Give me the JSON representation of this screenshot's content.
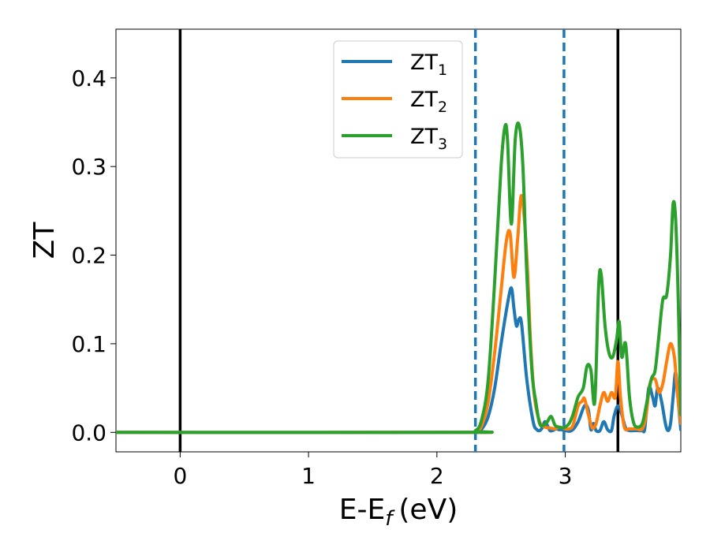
{
  "chart_data": {
    "type": "line",
    "xlabel": "E-E",
    "xlabel_sub": "f",
    "xlabel_unit": "(eV)",
    "ylabel": "ZT",
    "xlim": [
      -0.5,
      3.9
    ],
    "ylim": [
      -0.022,
      0.455
    ],
    "xticks": [
      0,
      1,
      2,
      3
    ],
    "xtick_labels": [
      "0",
      "1",
      "2",
      "3"
    ],
    "yticks": [
      0.0,
      0.1,
      0.2,
      0.3,
      0.4
    ],
    "ytick_labels": [
      "0.0",
      "0.1",
      "0.2",
      "0.3",
      "0.4"
    ],
    "grid": false,
    "legend_position": "top-center",
    "vlines": [
      {
        "x": 0.0,
        "style": "solid",
        "color": "#000000"
      },
      {
        "x": 3.41,
        "style": "solid",
        "color": "#000000"
      },
      {
        "x": 2.3,
        "style": "dashed",
        "color": "#1f77b4"
      },
      {
        "x": 2.99,
        "style": "dashed",
        "color": "#1f77b4"
      }
    ],
    "series": [
      {
        "name": "ZT",
        "subscript": "1",
        "color": "#1f77b4",
        "x": [
          -0.5,
          2.2,
          2.3,
          2.35,
          2.4,
          2.45,
          2.5,
          2.55,
          2.58,
          2.6,
          2.62,
          2.64,
          2.66,
          2.7,
          2.75,
          2.78,
          2.8,
          2.82,
          2.84,
          2.86,
          2.88,
          2.9,
          2.93,
          2.95,
          2.97,
          3.0,
          3.05,
          3.1,
          3.15,
          3.18,
          3.2,
          3.22,
          3.24,
          3.27,
          3.3,
          3.33,
          3.36,
          3.38,
          3.41,
          3.44,
          3.47,
          3.5,
          3.55,
          3.6,
          3.62,
          3.65,
          3.68,
          3.7,
          3.72,
          3.75,
          3.78,
          3.8,
          3.82,
          3.84,
          3.86,
          3.88,
          3.9
        ],
        "y": [
          0.0,
          0.0,
          0.001,
          0.004,
          0.018,
          0.05,
          0.1,
          0.145,
          0.163,
          0.14,
          0.12,
          0.128,
          0.122,
          0.06,
          0.012,
          0.003,
          0.002,
          0.005,
          0.012,
          0.008,
          0.002,
          0.002,
          0.004,
          0.003,
          0.003,
          0.002,
          0.002,
          0.012,
          0.03,
          0.025,
          0.003,
          0.01,
          0.002,
          0.002,
          0.012,
          0.003,
          0.002,
          0.018,
          0.03,
          0.02,
          0.005,
          0.002,
          0.002,
          0.002,
          0.005,
          0.05,
          0.04,
          0.03,
          0.05,
          0.035,
          0.01,
          0.002,
          0.01,
          0.04,
          0.068,
          0.035,
          0.003
        ]
      },
      {
        "name": "ZT",
        "subscript": "2",
        "color": "#ff7f0e",
        "x": [
          -0.5,
          2.2,
          2.3,
          2.35,
          2.4,
          2.45,
          2.5,
          2.54,
          2.57,
          2.6,
          2.63,
          2.66,
          2.7,
          2.73,
          2.76,
          2.8,
          2.84,
          2.88,
          2.92,
          2.95,
          2.98,
          3.0,
          3.03,
          3.06,
          3.1,
          3.13,
          3.15,
          3.18,
          3.21,
          3.24,
          3.27,
          3.3,
          3.33,
          3.36,
          3.39,
          3.41,
          3.43,
          3.46,
          3.5,
          3.55,
          3.6,
          3.63,
          3.66,
          3.7,
          3.73,
          3.76,
          3.79,
          3.82,
          3.85,
          3.87,
          3.9
        ],
        "y": [
          0.0,
          0.0,
          0.001,
          0.008,
          0.035,
          0.09,
          0.16,
          0.215,
          0.225,
          0.175,
          0.22,
          0.267,
          0.2,
          0.1,
          0.04,
          0.012,
          0.006,
          0.005,
          0.004,
          0.006,
          0.005,
          0.004,
          0.004,
          0.008,
          0.03,
          0.035,
          0.038,
          0.02,
          0.005,
          0.01,
          0.03,
          0.045,
          0.035,
          0.045,
          0.04,
          0.08,
          0.04,
          0.006,
          0.004,
          0.004,
          0.004,
          0.02,
          0.055,
          0.06,
          0.045,
          0.055,
          0.08,
          0.1,
          0.085,
          0.05,
          0.01
        ]
      },
      {
        "name": "ZT",
        "subscript": "3",
        "color": "#2ca02c",
        "x": [
          -0.5,
          2.2,
          2.3,
          2.35,
          2.4,
          2.45,
          2.5,
          2.53,
          2.55,
          2.58,
          2.61,
          2.64,
          2.67,
          2.7,
          2.74,
          2.77,
          2.8,
          2.83,
          2.86,
          2.89,
          2.92,
          2.95,
          2.98,
          3.0,
          3.03,
          3.06,
          3.1,
          3.14,
          3.17,
          3.2,
          3.23,
          3.26,
          3.28,
          3.31,
          3.34,
          3.37,
          3.4,
          3.42,
          3.44,
          3.47,
          3.5,
          3.53,
          3.56,
          3.6,
          3.63,
          3.67,
          3.7,
          3.73,
          3.76,
          3.79,
          3.82,
          3.84,
          3.86,
          3.88,
          3.9
        ],
        "y": [
          0.0,
          0.0,
          0.002,
          0.015,
          0.06,
          0.17,
          0.3,
          0.345,
          0.33,
          0.235,
          0.33,
          0.347,
          0.3,
          0.18,
          0.07,
          0.035,
          0.01,
          0.008,
          0.012,
          0.018,
          0.008,
          0.006,
          0.005,
          0.006,
          0.01,
          0.02,
          0.04,
          0.05,
          0.075,
          0.07,
          0.035,
          0.165,
          0.178,
          0.12,
          0.09,
          0.085,
          0.105,
          0.125,
          0.085,
          0.1,
          0.04,
          0.012,
          0.006,
          0.01,
          0.03,
          0.06,
          0.07,
          0.11,
          0.15,
          0.155,
          0.2,
          0.258,
          0.24,
          0.15,
          0.02
        ]
      }
    ]
  }
}
